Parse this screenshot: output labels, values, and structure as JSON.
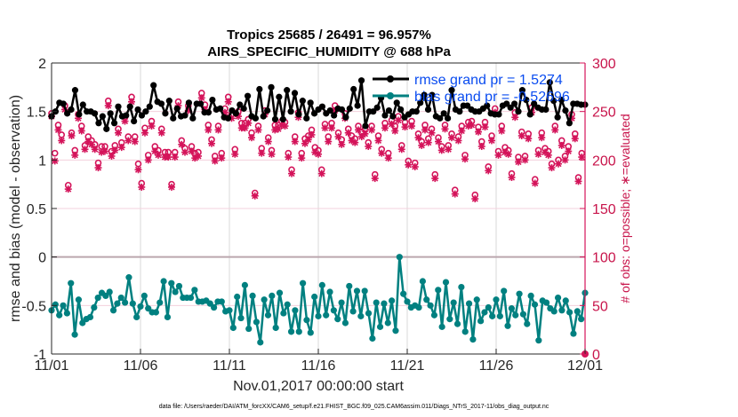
{
  "chart_data": {
    "type": "line",
    "title": [
      "Tropics 25685 / 26491 = 96.957%",
      "AIRS_SPECIFIC_HUMIDITY @ 688 hPa"
    ],
    "xlabel": "Nov.01,2017 00:00:00 start",
    "ylabel": "rmse and bias (model - observation)",
    "ylabel_right": "# of obs: o=possible; ∗=evaluated",
    "footnote": "data file: /Users/raeder/DAI/ATM_forcXX/CAM6_setup/f.e21.FHIST_BGC.f09_025.CAM6assim.011/Diags_NTrS_2017-11/obs_diag_output.nc",
    "x_ticks": [
      "11/01",
      "11/06",
      "11/11",
      "11/16",
      "11/21",
      "11/26",
      "12/01"
    ],
    "x_range_days": [
      0,
      30
    ],
    "ylim": [
      -1,
      2
    ],
    "y_ticks": [
      "-1",
      "-0.5",
      "0",
      "0.5",
      "1",
      "1.5",
      "2"
    ],
    "ylim_right": [
      0,
      300
    ],
    "y_ticks_right": [
      "0",
      "50",
      "100",
      "150",
      "200",
      "250",
      "300"
    ],
    "grid": true,
    "legend_position": "top-right",
    "legend": [
      {
        "label": "rmse grand pr = 1.5274",
        "color": "#000000"
      },
      {
        "label": "bias grand pr = -0.52696",
        "color": "#008080"
      }
    ],
    "colors": {
      "rmse": "#000000",
      "bias": "#008080",
      "obs": "#d4145a",
      "zero_line": "#bba6ae",
      "grid": "#d9d9d9"
    },
    "series": [
      {
        "name": "rmse",
        "x_step_days": 0.25,
        "values": [
          1.45,
          1.5,
          1.59,
          1.58,
          1.48,
          1.52,
          1.72,
          1.47,
          1.57,
          1.5,
          1.5,
          1.48,
          1.38,
          1.45,
          1.32,
          1.48,
          1.38,
          1.55,
          1.45,
          1.46,
          1.55,
          1.4,
          1.52,
          1.46,
          1.5,
          1.55,
          1.77,
          1.6,
          1.58,
          1.48,
          1.61,
          1.43,
          1.53,
          1.45,
          1.46,
          1.59,
          1.43,
          1.58,
          1.58,
          1.49,
          1.49,
          1.62,
          1.52,
          1.53,
          1.44,
          1.43,
          1.51,
          1.48,
          1.57,
          1.53,
          1.66,
          1.45,
          1.43,
          1.73,
          1.45,
          1.51,
          1.75,
          1.42,
          1.65,
          1.42,
          1.72,
          1.5,
          1.69,
          1.47,
          1.61,
          1.43,
          1.59,
          1.48,
          1.52,
          1.55,
          1.48,
          1.51,
          1.46,
          1.53,
          1.52,
          1.44,
          1.53,
          1.73,
          1.56,
          1.82,
          1.35,
          1.5,
          1.5,
          1.54,
          1.64,
          1.46,
          1.51,
          1.45,
          1.59,
          1.52,
          1.44,
          1.47,
          1.5,
          1.5,
          1.59,
          1.67,
          1.52,
          1.67,
          1.45,
          1.43,
          1.48,
          1.43,
          1.72,
          1.52,
          1.5,
          1.56,
          1.56,
          1.52,
          1.5,
          1.5,
          1.53,
          1.56,
          1.48,
          1.47,
          1.47,
          1.56,
          1.58,
          1.54,
          1.58,
          1.5,
          1.72,
          1.62,
          1.47,
          1.58,
          1.54,
          1.52,
          1.52,
          1.8,
          1.61,
          1.44,
          1.62,
          1.51,
          1.38,
          1.58,
          1.58,
          1.57,
          1.57
        ]
      },
      {
        "name": "bias",
        "x_step_days": 0.25,
        "values": [
          -0.55,
          -0.49,
          -0.6,
          -0.5,
          -0.58,
          -0.27,
          -0.8,
          -0.44,
          -0.68,
          -0.64,
          -0.62,
          -0.52,
          -0.42,
          -0.37,
          -0.4,
          -0.36,
          -0.55,
          -0.48,
          -0.42,
          -0.47,
          -0.21,
          -0.48,
          -0.62,
          -0.51,
          -0.4,
          -0.53,
          -0.57,
          -0.57,
          -0.47,
          -0.25,
          -0.62,
          -0.27,
          -0.36,
          -0.3,
          -0.42,
          -0.42,
          -0.42,
          -0.34,
          -0.46,
          -0.46,
          -0.45,
          -0.48,
          -0.52,
          -0.46,
          -0.46,
          -0.56,
          -0.55,
          -0.73,
          -0.41,
          -0.63,
          -0.29,
          -0.74,
          -0.4,
          -0.67,
          -0.88,
          -0.44,
          -0.6,
          -0.4,
          -0.73,
          -0.37,
          -0.58,
          -0.49,
          -0.77,
          -0.55,
          -0.77,
          -0.27,
          -0.65,
          -0.78,
          -0.41,
          -0.61,
          -0.29,
          -0.6,
          -0.36,
          -0.55,
          -0.64,
          -0.47,
          -0.68,
          -0.3,
          -0.56,
          -0.35,
          -0.61,
          -0.35,
          -0.58,
          -0.84,
          -0.47,
          -0.72,
          -0.48,
          -0.68,
          -0.45,
          -0.76,
          0.0,
          -0.38,
          -0.46,
          -0.52,
          -0.5,
          -0.52,
          -0.25,
          -0.44,
          -0.5,
          -0.6,
          -0.34,
          -0.72,
          -0.26,
          -0.64,
          -0.47,
          -0.69,
          -0.31,
          -0.77,
          -0.48,
          -0.85,
          -0.44,
          -0.66,
          -0.57,
          -0.52,
          -0.61,
          -0.44,
          -0.61,
          -0.35,
          -0.71,
          -0.53,
          -0.6,
          -0.38,
          -0.59,
          -0.69,
          -0.4,
          -0.49,
          -0.86,
          -0.45,
          -0.47,
          -0.53,
          -0.56,
          -0.42,
          -0.55,
          -0.45,
          -0.57,
          -0.79,
          -0.56,
          -0.64,
          -0.37
        ]
      },
      {
        "name": "obs possible (o)",
        "x_step_days": 0.25,
        "values": [
          248,
          207,
          236,
          226,
          256,
          174,
          228,
          210,
          247,
          235,
          215,
          224,
          220,
          216,
          197,
          214,
          214,
          261,
          209,
          215,
          232,
          218,
          244,
          224,
          265,
          224,
          196,
          176,
          233,
          205,
          240,
          214,
          210,
          232,
          208,
          208,
          175,
          208,
          260,
          220,
          212,
          256,
          214,
          207,
          208,
          269,
          257,
          236,
          221,
          204,
          235,
          207,
          253,
          265,
          247,
          211,
          250,
          238,
          238,
          242,
          228,
          166,
          235,
          212,
          251,
          223,
          210,
          236,
          236,
          240,
          239,
          207,
          190,
          224,
          249,
          207,
          222,
          225,
          231,
          213,
          210,
          190,
          237,
          224,
          238,
          256,
          228,
          221,
          248,
          232,
          225,
          222,
          235,
          229,
          232,
          218,
          235,
          185,
          225,
          211,
          238,
          207,
          241,
          235,
          245,
          215,
          239,
          199,
          240,
          197,
          227,
          219,
          236,
          222,
          232,
          185,
          223,
          214,
          236,
          215,
          227,
          169,
          224,
          235,
          205,
          239,
          240,
          164,
          234,
          219,
          239,
          193,
          225,
          253,
          209,
          235,
          213,
          210,
          186,
          249,
          203,
          229,
          204,
          227,
          254,
          180,
          210,
          228,
          212,
          209,
          196,
          235,
          200,
          220,
          204,
          214,
          247,
          227,
          182,
          207
        ]
      },
      {
        "name": "obs evaluated (*)",
        "x_step_days": 0.25,
        "values": [
          245,
          199,
          231,
          220,
          252,
          170,
          225,
          205,
          243,
          230,
          211,
          219,
          216,
          211,
          192,
          208,
          209,
          256,
          204,
          210,
          228,
          213,
          240,
          220,
          260,
          219,
          190,
          172,
          228,
          200,
          235,
          209,
          205,
          228,
          203,
          203,
          172,
          203,
          256,
          216,
          208,
          251,
          209,
          202,
          204,
          264,
          252,
          231,
          217,
          199,
          231,
          202,
          249,
          260,
          243,
          206,
          245,
          233,
          233,
          238,
          223,
          163,
          231,
          207,
          247,
          219,
          206,
          231,
          232,
          236,
          235,
          203,
          186,
          219,
          244,
          202,
          217,
          221,
          226,
          208,
          206,
          186,
          233,
          219,
          233,
          251,
          224,
          216,
          243,
          228,
          220,
          218,
          231,
          224,
          227,
          214,
          231,
          181,
          220,
          207,
          233,
          202,
          237,
          230,
          241,
          211,
          234,
          195,
          235,
          193,
          223,
          215,
          231,
          218,
          228,
          181,
          219,
          210,
          232,
          211,
          223,
          165,
          220,
          230,
          201,
          235,
          236,
          160,
          229,
          214,
          234,
          189,
          220,
          249,
          205,
          230,
          208,
          206,
          182,
          244,
          198,
          225,
          200,
          222,
          249,
          176,
          206,
          223,
          208,
          205,
          192,
          231,
          196,
          215,
          200,
          209,
          243,
          222,
          178,
          203
        ]
      }
    ]
  }
}
